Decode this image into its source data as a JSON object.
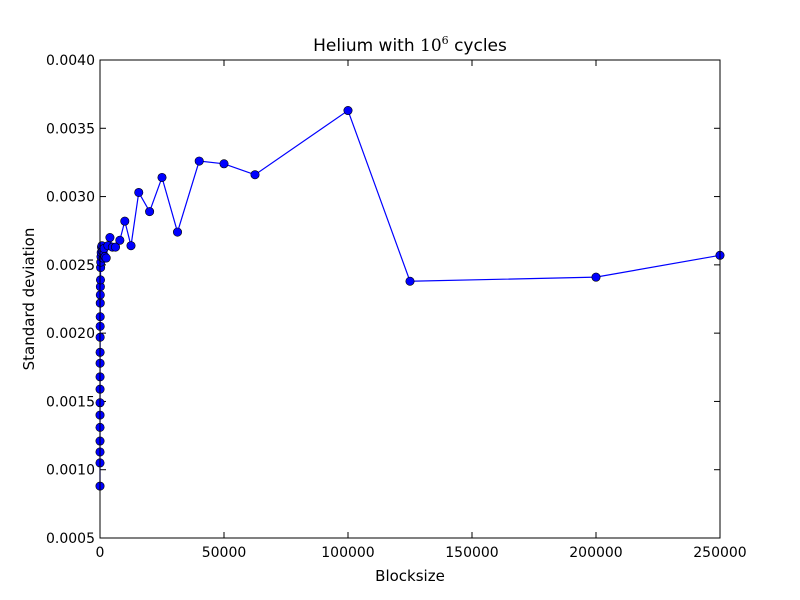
{
  "chart_data": {
    "type": "line",
    "title_prefix": "Helium with ",
    "title_math_base": "10",
    "title_math_exp": "6",
    "title_suffix": " cycles",
    "xlabel": "Blocksize",
    "ylabel": "Standard deviation",
    "xlim": [
      0,
      250000
    ],
    "ylim": [
      0.0005,
      0.004
    ],
    "xticks": [
      0,
      50000,
      100000,
      150000,
      200000,
      250000
    ],
    "xtick_labels": [
      "0",
      "50000",
      "100000",
      "150000",
      "200000",
      "250000"
    ],
    "yticks": [
      0.0005,
      0.001,
      0.0015,
      0.002,
      0.0025,
      0.003,
      0.0035,
      0.004
    ],
    "ytick_labels": [
      "0.0005",
      "0.0010",
      "0.0015",
      "0.0020",
      "0.0025",
      "0.0030",
      "0.0035",
      "0.0040"
    ],
    "grid": false,
    "legend": "none",
    "series_color": "#0000ff",
    "marker_color": "#0000ff",
    "series": [
      {
        "x": [
          1,
          2,
          4,
          5,
          8,
          10,
          16,
          20,
          25,
          32,
          40,
          50,
          64,
          80,
          100,
          125,
          160,
          200,
          250,
          320,
          400,
          500,
          625,
          800,
          1000,
          1250,
          1600,
          2000,
          2500,
          3200,
          4000,
          5000,
          6250,
          8000,
          10000,
          12500,
          15625,
          20000,
          25000,
          31250,
          40000,
          50000,
          62500,
          100000,
          125000,
          200000,
          250000
        ],
        "y": [
          0.00088,
          0.00105,
          0.00113,
          0.00121,
          0.00131,
          0.0014,
          0.00149,
          0.00159,
          0.00168,
          0.00178,
          0.00186,
          0.00197,
          0.00205,
          0.00212,
          0.00222,
          0.00228,
          0.00234,
          0.00239,
          0.00248,
          0.00252,
          0.00256,
          0.00259,
          0.00263,
          0.00264,
          0.0026,
          0.00255,
          0.00262,
          0.00256,
          0.00255,
          0.00264,
          0.0027,
          0.00263,
          0.00263,
          0.00268,
          0.00282,
          0.00264,
          0.00303,
          0.00289,
          0.00314,
          0.00274,
          0.00326,
          0.00324,
          0.00316,
          0.00363,
          0.00238,
          0.00241,
          0.00257
        ]
      }
    ]
  }
}
